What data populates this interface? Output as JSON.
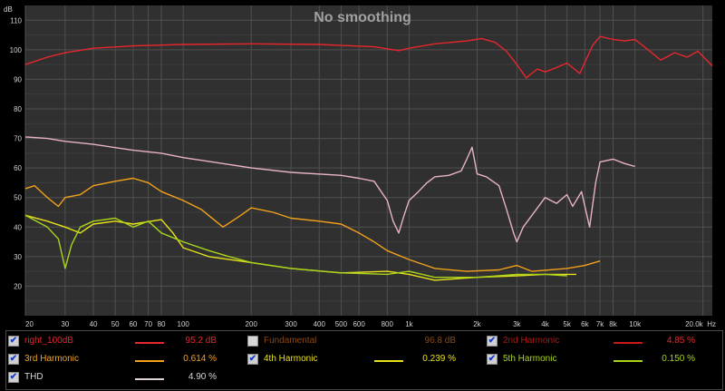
{
  "chart_data": {
    "type": "line",
    "title": "No smoothing",
    "x_scale": "log",
    "xlim": [
      20,
      22000
    ],
    "ylim": [
      10,
      115
    ],
    "yunit": "dB",
    "xunit": "Hz",
    "grid": true,
    "y_ticks": [
      110,
      100,
      90,
      80,
      70,
      60,
      50,
      40,
      30,
      20
    ],
    "x_ticks": [
      {
        "v": 20,
        "l": "20"
      },
      {
        "v": 30,
        "l": "30"
      },
      {
        "v": 40,
        "l": "40"
      },
      {
        "v": 50,
        "l": "50"
      },
      {
        "v": 60,
        "l": "60"
      },
      {
        "v": 70,
        "l": "70"
      },
      {
        "v": 80,
        "l": "80"
      },
      {
        "v": 100,
        "l": "100"
      },
      {
        "v": 200,
        "l": "200"
      },
      {
        "v": 300,
        "l": "300"
      },
      {
        "v": 400,
        "l": "400"
      },
      {
        "v": 500,
        "l": "500"
      },
      {
        "v": 600,
        "l": "600"
      },
      {
        "v": 800,
        "l": "800"
      },
      {
        "v": 1000,
        "l": "1k"
      },
      {
        "v": 2000,
        "l": "2k"
      },
      {
        "v": 3000,
        "l": "3k"
      },
      {
        "v": 4000,
        "l": "4k"
      },
      {
        "v": 5000,
        "l": "5k"
      },
      {
        "v": 6000,
        "l": "6k"
      },
      {
        "v": 7000,
        "l": "7k"
      },
      {
        "v": 8000,
        "l": "8k"
      },
      {
        "v": 10000,
        "l": "10k"
      },
      {
        "v": 20000,
        "l": "20.0k"
      }
    ],
    "series": [
      {
        "name": "right_100dB",
        "color": "#e8262e",
        "points": [
          [
            20,
            95
          ],
          [
            25,
            97.5
          ],
          [
            30,
            99
          ],
          [
            40,
            100.5
          ],
          [
            60,
            101.3
          ],
          [
            100,
            101.8
          ],
          [
            200,
            102
          ],
          [
            400,
            101.8
          ],
          [
            700,
            101
          ],
          [
            900,
            99.7
          ],
          [
            1000,
            100.5
          ],
          [
            1300,
            102
          ],
          [
            1800,
            103
          ],
          [
            2100,
            103.8
          ],
          [
            2400,
            102.5
          ],
          [
            2700,
            99.5
          ],
          [
            3000,
            95
          ],
          [
            3300,
            90.5
          ],
          [
            3700,
            93.5
          ],
          [
            4000,
            92.5
          ],
          [
            4500,
            94
          ],
          [
            5000,
            95.5
          ],
          [
            5700,
            92
          ],
          [
            6500,
            101.5
          ],
          [
            7000,
            104.5
          ],
          [
            8000,
            103.5
          ],
          [
            9000,
            103
          ],
          [
            10000,
            103.5
          ],
          [
            11000,
            101
          ],
          [
            13000,
            96.5
          ],
          [
            15000,
            99
          ],
          [
            17000,
            97.5
          ],
          [
            19000,
            99.5
          ],
          [
            22000,
            94.5
          ]
        ]
      },
      {
        "name": "THD",
        "color": "#e8b4c0",
        "points": [
          [
            20,
            70.5
          ],
          [
            25,
            70
          ],
          [
            30,
            69
          ],
          [
            40,
            68
          ],
          [
            60,
            66
          ],
          [
            80,
            65
          ],
          [
            100,
            63.5
          ],
          [
            150,
            61.5
          ],
          [
            200,
            60
          ],
          [
            300,
            58.5
          ],
          [
            500,
            57.5
          ],
          [
            600,
            56.5
          ],
          [
            700,
            55.5
          ],
          [
            800,
            49
          ],
          [
            850,
            42
          ],
          [
            900,
            38
          ],
          [
            950,
            44
          ],
          [
            1000,
            49
          ],
          [
            1100,
            52
          ],
          [
            1200,
            55
          ],
          [
            1300,
            57
          ],
          [
            1500,
            57.5
          ],
          [
            1700,
            59
          ],
          [
            1800,
            63
          ],
          [
            1900,
            67
          ],
          [
            2000,
            58
          ],
          [
            2200,
            57
          ],
          [
            2500,
            54
          ],
          [
            2700,
            46
          ],
          [
            2900,
            38
          ],
          [
            3000,
            35
          ],
          [
            3200,
            40
          ],
          [
            3500,
            44
          ],
          [
            4000,
            50
          ],
          [
            4500,
            48
          ],
          [
            5000,
            51
          ],
          [
            5300,
            47
          ],
          [
            5800,
            52
          ],
          [
            6300,
            40
          ],
          [
            6700,
            55
          ],
          [
            7000,
            62
          ],
          [
            8000,
            63
          ],
          [
            9000,
            61.5
          ],
          [
            10000,
            60.5
          ]
        ]
      },
      {
        "name": "3rd Harmonic",
        "color": "#f2a21a",
        "points": [
          [
            20,
            53
          ],
          [
            22,
            54
          ],
          [
            25,
            50
          ],
          [
            28,
            47
          ],
          [
            30,
            50
          ],
          [
            35,
            51
          ],
          [
            40,
            54
          ],
          [
            50,
            55.5
          ],
          [
            60,
            56.5
          ],
          [
            70,
            55
          ],
          [
            80,
            52
          ],
          [
            100,
            49
          ],
          [
            120,
            46
          ],
          [
            150,
            40
          ],
          [
            180,
            44
          ],
          [
            200,
            46.5
          ],
          [
            250,
            45
          ],
          [
            300,
            43
          ],
          [
            400,
            42
          ],
          [
            500,
            41
          ],
          [
            600,
            38
          ],
          [
            700,
            35
          ],
          [
            800,
            32
          ],
          [
            1000,
            29
          ],
          [
            1300,
            26
          ],
          [
            1800,
            25
          ],
          [
            2500,
            25.5
          ],
          [
            3000,
            27
          ],
          [
            3500,
            25
          ],
          [
            5000,
            26
          ],
          [
            6000,
            27
          ],
          [
            7000,
            28.5
          ]
        ]
      },
      {
        "name": "4th Harmonic",
        "color": "#e8e21a",
        "points": [
          [
            20,
            44
          ],
          [
            25,
            42
          ],
          [
            30,
            40
          ],
          [
            35,
            38
          ],
          [
            40,
            41
          ],
          [
            50,
            42
          ],
          [
            60,
            41
          ],
          [
            80,
            42.5
          ],
          [
            90,
            38
          ],
          [
            100,
            33
          ],
          [
            130,
            30
          ],
          [
            160,
            29
          ],
          [
            200,
            28
          ],
          [
            300,
            26
          ],
          [
            500,
            24.5
          ],
          [
            800,
            25
          ],
          [
            1000,
            24
          ],
          [
            1300,
            22
          ],
          [
            2000,
            23
          ],
          [
            3000,
            23.5
          ],
          [
            4000,
            24
          ],
          [
            5500,
            24
          ]
        ]
      },
      {
        "name": "5th Harmonic",
        "color": "#a8d41a",
        "points": [
          [
            20,
            44
          ],
          [
            25,
            40
          ],
          [
            28,
            36
          ],
          [
            30,
            26
          ],
          [
            32,
            34
          ],
          [
            35,
            40
          ],
          [
            40,
            42
          ],
          [
            50,
            43
          ],
          [
            60,
            40
          ],
          [
            70,
            42
          ],
          [
            80,
            38
          ],
          [
            100,
            35
          ],
          [
            130,
            32
          ],
          [
            160,
            30
          ],
          [
            200,
            28
          ],
          [
            300,
            26
          ],
          [
            500,
            24.5
          ],
          [
            800,
            24
          ],
          [
            1000,
            25
          ],
          [
            1300,
            23
          ],
          [
            2000,
            23
          ],
          [
            3000,
            24
          ],
          [
            4000,
            24
          ],
          [
            5000,
            23.5
          ]
        ]
      }
    ]
  },
  "legend": {
    "items": [
      {
        "label": "right_100dB",
        "value": "95.2 dB",
        "checked": true,
        "label_color": "#e8262e",
        "value_color": "#e8262e",
        "swatch": "#e8262e"
      },
      {
        "label": "Fundamental",
        "value": "96.8 dB",
        "checked": false,
        "label_color": "#8c4a14",
        "value_color": "#8c4a14",
        "swatch": ""
      },
      {
        "label": "2nd Harmonic",
        "value": "4.85 %",
        "checked": true,
        "label_color": "#b01818",
        "value_color": "#e8262e",
        "swatch": "#c81818"
      },
      {
        "label": "3rd Harmonic",
        "value": "0.614 %",
        "checked": true,
        "label_color": "#f2a21a",
        "value_color": "#f2a21a",
        "swatch": "#f2a21a"
      },
      {
        "label": "4th Harmonic",
        "value": "0.239 %",
        "checked": true,
        "label_color": "#e8e21a",
        "value_color": "#e8e21a",
        "swatch": "#e8e21a"
      },
      {
        "label": "5th Harmonic",
        "value": "0.150 %",
        "checked": true,
        "label_color": "#a8d41a",
        "value_color": "#a8d41a",
        "swatch": "#a8d41a"
      },
      {
        "label": "THD",
        "value": "4.90 %",
        "checked": true,
        "label_color": "#d8d8d8",
        "value_color": "#d8d8d8",
        "swatch": "#e0d0d8"
      }
    ]
  }
}
